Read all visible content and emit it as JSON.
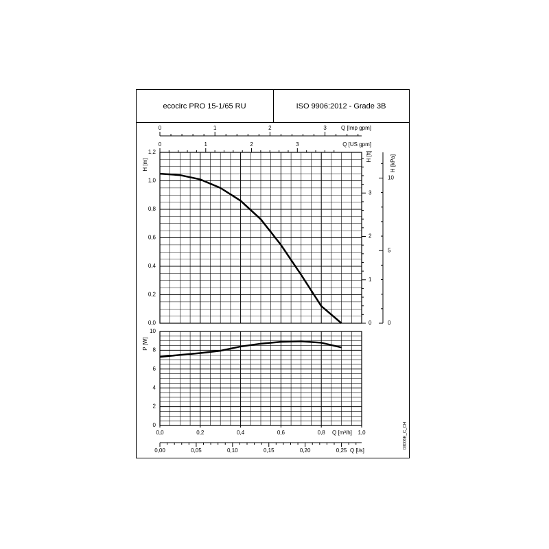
{
  "header": {
    "model": "ecocirc PRO 15-1/65 RU",
    "standard": "ISO 9906:2012 - Grade 3B"
  },
  "drawing_code": "03006E_C_CH",
  "chart_data": [
    {
      "type": "line",
      "ylabel": "H [m]",
      "xlim": [
        0,
        1
      ],
      "ylim": [
        0,
        1.2
      ],
      "yticks": [
        {
          "value": 0,
          "label": "0,0"
        },
        {
          "value": 0.2,
          "label": "0,2"
        },
        {
          "value": 0.4,
          "label": "0,4"
        },
        {
          "value": 0.6,
          "label": "0,6"
        },
        {
          "value": 0.8,
          "label": "0,8"
        },
        {
          "value": 1.0,
          "label": "1,0"
        },
        {
          "value": 1.2,
          "label": "1,2"
        }
      ],
      "grid": true,
      "x": [
        0,
        0.1,
        0.2,
        0.3,
        0.4,
        0.5,
        0.6,
        0.7,
        0.8,
        0.9
      ],
      "series": [
        {
          "color": "#000000",
          "values": [
            1.05,
            1.04,
            1.01,
            0.95,
            0.86,
            0.73,
            0.55,
            0.34,
            0.12,
            0.0
          ]
        }
      ],
      "right_axes": [
        {
          "label": "H [ft]",
          "lim": [
            0,
            3.937
          ],
          "ticks": [
            0,
            1,
            2,
            3
          ]
        },
        {
          "label": "H [kPa]",
          "lim": [
            0,
            11.77
          ],
          "ticks": [
            0,
            5,
            10
          ]
        }
      ],
      "top_axes": [
        {
          "label": "Q [Imp gpm]",
          "lim": [
            0,
            3.666
          ],
          "ticks": [
            0,
            1,
            2,
            3
          ]
        },
        {
          "label": "Q [US gpm]",
          "lim": [
            0,
            4.403
          ],
          "ticks": [
            0,
            1,
            2,
            3
          ]
        }
      ]
    },
    {
      "type": "line",
      "ylabel": "P [W]",
      "xlabel": "Q [m³/h]",
      "xlim": [
        0,
        1
      ],
      "ylim": [
        0,
        10
      ],
      "xticks": [
        {
          "value": 0,
          "label": "0,0"
        },
        {
          "value": 0.2,
          "label": "0,2"
        },
        {
          "value": 0.4,
          "label": "0,4"
        },
        {
          "value": 0.6,
          "label": "0,6"
        },
        {
          "value": 0.8,
          "label": "0,8"
        },
        {
          "value": 1.0,
          "label": "1,0"
        }
      ],
      "yticks": [
        0,
        2,
        4,
        6,
        8,
        10
      ],
      "grid": true,
      "x": [
        0,
        0.1,
        0.2,
        0.3,
        0.4,
        0.5,
        0.6,
        0.7,
        0.8,
        0.9
      ],
      "series": [
        {
          "color": "#000000",
          "values": [
            7.3,
            7.5,
            7.7,
            7.95,
            8.4,
            8.7,
            8.9,
            8.95,
            8.8,
            8.3
          ]
        }
      ],
      "bottom_axes": [
        {
          "label": "Q [l/s]",
          "lim": [
            0,
            0.2778
          ],
          "ticks": [
            {
              "value": 0,
              "label": "0,00"
            },
            {
              "value": 0.05,
              "label": "0,05"
            },
            {
              "value": 0.1,
              "label": "0,10"
            },
            {
              "value": 0.15,
              "label": "0,15"
            },
            {
              "value": 0.2,
              "label": "0,20"
            },
            {
              "value": 0.25,
              "label": "0,25"
            }
          ]
        }
      ]
    }
  ]
}
